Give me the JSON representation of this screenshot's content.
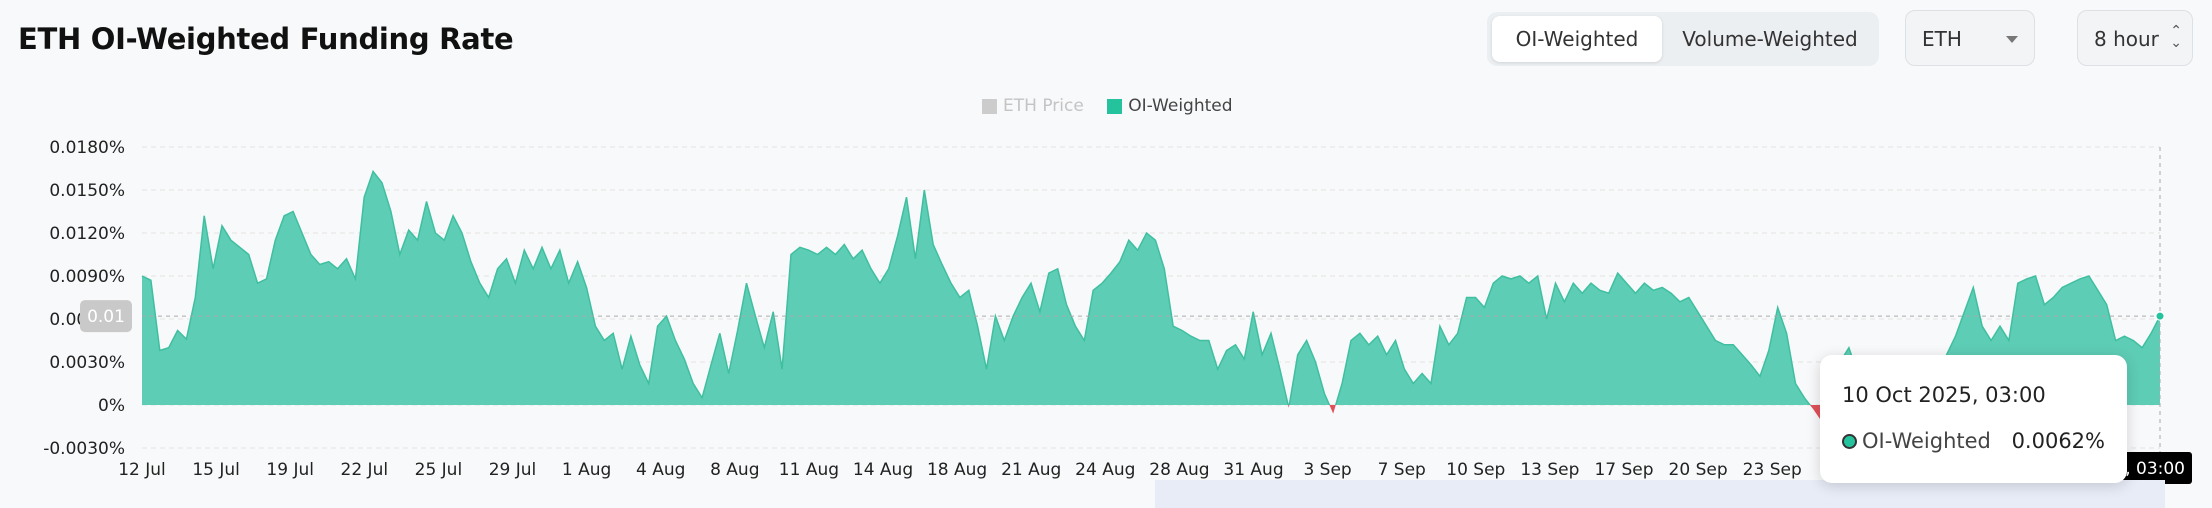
{
  "header": {
    "title": "ETH OI-Weighted Funding Rate"
  },
  "toggle": {
    "options": [
      "OI-Weighted",
      "Volume-Weighted"
    ],
    "active": 0
  },
  "asset_select": {
    "value": "ETH"
  },
  "interval_select": {
    "value": "8 hour"
  },
  "legend": [
    {
      "label": "ETH Price",
      "color": "#cccccc",
      "disabled": true
    },
    {
      "label": "OI-Weighted",
      "color": "#25c39d",
      "disabled": false
    }
  ],
  "crosshair": {
    "y_label": "0.01",
    "x_label": "10 Oct 2025, 03:00"
  },
  "tooltip": {
    "date": "10 Oct 2025, 03:00",
    "series": "OI-Weighted",
    "value": "0.0062%"
  },
  "chart_data": {
    "type": "area",
    "series_name": "OI-Weighted",
    "y_unit": "%",
    "ylim": [
      -0.003,
      0.018
    ],
    "y_ticks": [
      "0.0180%",
      "0.0150%",
      "0.0120%",
      "0.0090%",
      "0.0060%",
      "0.0030%",
      "0%",
      "-0.0030%"
    ],
    "x_ticks": [
      "12 Jul",
      "15 Jul",
      "19 Jul",
      "22 Jul",
      "25 Jul",
      "29 Jul",
      "1 Aug",
      "4 Aug",
      "8 Aug",
      "11 Aug",
      "14 Aug",
      "18 Aug",
      "21 Aug",
      "24 Aug",
      "28 Aug",
      "31 Aug",
      "3 Sep",
      "7 Sep",
      "10 Sep",
      "13 Sep",
      "17 Sep",
      "20 Sep",
      "23 Sep",
      "10 Oct 2025, 03:00"
    ],
    "colors": {
      "positive": "#5ecdb6",
      "negative": "#e0515a"
    },
    "grid": true,
    "x_start": "2025-07-12",
    "x_end": "2025-10-10",
    "values": [
      0.009,
      0.0087,
      0.0038,
      0.004,
      0.0052,
      0.0046,
      0.0075,
      0.0132,
      0.0095,
      0.0125,
      0.0115,
      0.011,
      0.0105,
      0.0085,
      0.0088,
      0.0115,
      0.0132,
      0.0135,
      0.012,
      0.0105,
      0.0098,
      0.01,
      0.0095,
      0.0102,
      0.0088,
      0.0145,
      0.0163,
      0.0155,
      0.0135,
      0.0105,
      0.0122,
      0.0115,
      0.0142,
      0.012,
      0.0115,
      0.0132,
      0.012,
      0.01,
      0.0085,
      0.0075,
      0.0095,
      0.0102,
      0.0085,
      0.0108,
      0.0095,
      0.011,
      0.0095,
      0.0108,
      0.0085,
      0.01,
      0.0082,
      0.0055,
      0.0045,
      0.005,
      0.0025,
      0.0048,
      0.0028,
      0.0015,
      0.0055,
      0.0062,
      0.0045,
      0.0032,
      0.0015,
      0.0005,
      0.0028,
      0.005,
      0.0022,
      0.0052,
      0.0085,
      0.0062,
      0.004,
      0.0065,
      0.0025,
      0.0105,
      0.011,
      0.0108,
      0.0105,
      0.011,
      0.0105,
      0.0112,
      0.0102,
      0.0108,
      0.0095,
      0.0085,
      0.0095,
      0.0118,
      0.0145,
      0.0102,
      0.015,
      0.0112,
      0.0098,
      0.0085,
      0.0075,
      0.008,
      0.0055,
      0.0025,
      0.0062,
      0.0045,
      0.0062,
      0.0075,
      0.0085,
      0.0065,
      0.0092,
      0.0095,
      0.007,
      0.0055,
      0.0045,
      0.008,
      0.0085,
      0.0092,
      0.01,
      0.0115,
      0.0108,
      0.012,
      0.0115,
      0.0095,
      0.0055,
      0.0052,
      0.0048,
      0.0045,
      0.0045,
      0.0025,
      0.0038,
      0.0042,
      0.0032,
      0.0065,
      0.0035,
      0.005,
      0.0025,
      -0.0002,
      0.0035,
      0.0045,
      0.003,
      0.0008,
      -0.0006,
      0.0015,
      0.0045,
      0.005,
      0.0042,
      0.0048,
      0.0035,
      0.0045,
      0.0025,
      0.0015,
      0.0022,
      0.0015,
      0.0055,
      0.0042,
      0.005,
      0.0075,
      0.0075,
      0.0068,
      0.0085,
      0.009,
      0.0088,
      0.009,
      0.0085,
      0.009,
      0.006,
      0.0085,
      0.0072,
      0.0085,
      0.0078,
      0.0085,
      0.008,
      0.0078,
      0.0092,
      0.0085,
      0.0078,
      0.0085,
      0.008,
      0.0082,
      0.0078,
      0.0072,
      0.0075,
      0.0065,
      0.0055,
      0.0045,
      0.0042,
      0.0042,
      0.0035,
      0.0028,
      0.002,
      0.0038,
      0.0068,
      0.005,
      0.0015,
      0.0005,
      -0.0003,
      -0.0012,
      0.0008,
      0.003,
      0.004,
      0.0022,
      0.0018,
      0.0008,
      -0.0012,
      -0.0005,
      0.0015,
      0.0028,
      0.003,
      0.002,
      0.0015,
      0.0035,
      0.0048,
      0.0065,
      0.0082,
      0.0055,
      0.0045,
      0.0055,
      0.0045,
      0.0085,
      0.0088,
      0.009,
      0.007,
      0.0075,
      0.0082,
      0.0085,
      0.0088,
      0.009,
      0.008,
      0.007,
      0.0045,
      0.0048,
      0.0045,
      0.004,
      0.005,
      0.0062
    ]
  }
}
